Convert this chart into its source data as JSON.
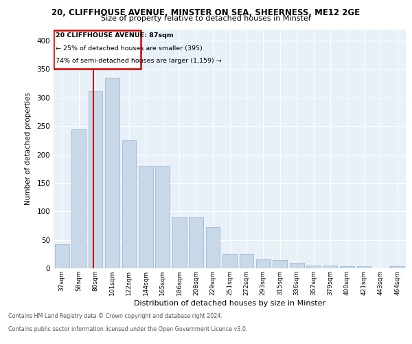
{
  "title1": "20, CLIFFHOUSE AVENUE, MINSTER ON SEA, SHEERNESS, ME12 2GE",
  "title2": "Size of property relative to detached houses in Minster",
  "xlabel": "Distribution of detached houses by size in Minster",
  "ylabel": "Number of detached properties",
  "categories": [
    "37sqm",
    "58sqm",
    "80sqm",
    "101sqm",
    "122sqm",
    "144sqm",
    "165sqm",
    "186sqm",
    "208sqm",
    "229sqm",
    "251sqm",
    "272sqm",
    "293sqm",
    "315sqm",
    "336sqm",
    "357sqm",
    "379sqm",
    "400sqm",
    "421sqm",
    "443sqm",
    "464sqm"
  ],
  "values": [
    42,
    244,
    312,
    335,
    225,
    180,
    180,
    90,
    90,
    73,
    25,
    25,
    16,
    15,
    10,
    5,
    5,
    4,
    4,
    0,
    4
  ],
  "bar_color": "#c8d8e8",
  "bar_edge_color": "#a0b8cc",
  "vline_x_data": 2.33,
  "box_text_lines": [
    "20 CLIFFHOUSE AVENUE: 87sqm",
    "← 25% of detached houses are smaller (395)",
    "74% of semi-detached houses are larger (1,159) →"
  ],
  "box_color": "#cc0000",
  "ylim": [
    0,
    420
  ],
  "yticks": [
    0,
    50,
    100,
    150,
    200,
    250,
    300,
    350,
    400
  ],
  "footer1": "Contains HM Land Registry data © Crown copyright and database right 2024.",
  "footer2": "Contains public sector information licensed under the Open Government Licence v3.0.",
  "bg_color": "#e8f0f8",
  "grid_color": "#ffffff"
}
